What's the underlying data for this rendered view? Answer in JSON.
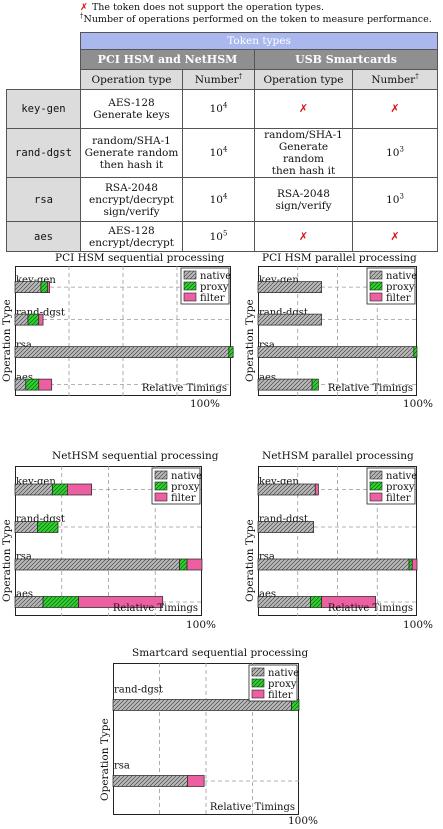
{
  "notes": {
    "cross_symbol": "✗",
    "cross_text": "The token does not support the operation types.",
    "dagger": "†",
    "dagger_text": "Number of operations performed on the token to measure performance."
  },
  "table": {
    "token_types_label": "Token types",
    "groups": [
      "PCI HSM and NetHSM",
      "USB Smartcards"
    ],
    "op_type_label": "Operation type",
    "number_label": "Number",
    "number_sup": "†",
    "rows": [
      {
        "name": "key-gen",
        "pci_op": [
          "AES-128",
          "Generate keys"
        ],
        "pci_num_base": "10",
        "pci_num_exp": "4",
        "usb_op": null,
        "usb_num_base": null,
        "usb_num_exp": null
      },
      {
        "name": "rand-dgst",
        "pci_op": [
          "random/SHA-1",
          "Generate random",
          "then hash it"
        ],
        "pci_num_base": "10",
        "pci_num_exp": "4",
        "usb_op": [
          "random/SHA-1",
          "Generate random",
          "then hash it"
        ],
        "usb_num_base": "10",
        "usb_num_exp": "3"
      },
      {
        "name": "rsa",
        "pci_op": [
          "RSA-2048",
          "encrypt/decrypt",
          "sign/verify"
        ],
        "pci_num_base": "10",
        "pci_num_exp": "4",
        "usb_op": [
          "RSA-2048",
          "sign/verify"
        ],
        "usb_num_base": "10",
        "usb_num_exp": "3"
      },
      {
        "name": "aes",
        "pci_op": [
          "AES-128",
          "encrypt/decrypt"
        ],
        "pci_num_base": "10",
        "pci_num_exp": "5",
        "usb_op": null,
        "usb_num_base": null,
        "usb_num_exp": null
      }
    ],
    "unsupported_symbol": "✗"
  },
  "colors": {
    "native": "#b9b9b9",
    "proxy": "#2fd12f",
    "filter": "#ec5fa0",
    "table_header": "#aab8ee",
    "group_header": "#8f8f8f",
    "sub_header": "#dcdcdc",
    "cross": "#dd1111"
  },
  "chart_labels": {
    "ylabel": "Operation Type",
    "xlabel": "Relative Timings",
    "max_label": "100%",
    "legend": [
      "native",
      "proxy",
      "filter"
    ]
  },
  "chart_data": [
    {
      "type": "bar",
      "title": "PCI HSM sequential processing",
      "orientation": "horizontal-stacked",
      "categories": [
        "key-gen",
        "rand-dgst",
        "rsa",
        "aes"
      ],
      "series": [
        {
          "name": "native",
          "values": [
            12,
            6,
            99,
            5
          ]
        },
        {
          "name": "proxy",
          "values": [
            3,
            5,
            2,
            6
          ]
        },
        {
          "name": "filter",
          "values": [
            1,
            2,
            0,
            6
          ]
        }
      ],
      "xlabel": "Relative Timings",
      "ylabel": "Operation Type",
      "xlim": [
        0,
        100
      ],
      "grid": true
    },
    {
      "type": "bar",
      "title": "PCI HSM parallel processing",
      "orientation": "horizontal-stacked",
      "categories": [
        "key-gen",
        "rand-dgst",
        "rsa",
        "aes"
      ],
      "series": [
        {
          "name": "native",
          "values": [
            40,
            40,
            98,
            34
          ]
        },
        {
          "name": "proxy",
          "values": [
            0,
            0,
            2,
            4
          ]
        },
        {
          "name": "filter",
          "values": [
            0,
            0,
            0,
            0
          ]
        }
      ],
      "xlabel": "Relative Timings",
      "ylabel": "Operation Type",
      "xlim": [
        0,
        100
      ],
      "grid": true
    },
    {
      "type": "bar",
      "title": "NetHSM sequential processing",
      "orientation": "horizontal-stacked",
      "categories": [
        "key-gen",
        "rand-dgst",
        "rsa",
        "aes"
      ],
      "series": [
        {
          "name": "native",
          "values": [
            20,
            12,
            88,
            15
          ]
        },
        {
          "name": "proxy",
          "values": [
            8,
            11,
            4,
            19
          ]
        },
        {
          "name": "filter",
          "values": [
            13,
            0,
            8,
            45
          ]
        }
      ],
      "xlabel": "Relative Timings",
      "ylabel": "Operation Type",
      "xlim": [
        0,
        100
      ],
      "grid": true
    },
    {
      "type": "bar",
      "title": "NetHSM parallel processing",
      "orientation": "horizontal-stacked",
      "categories": [
        "key-gen",
        "rand-dgst",
        "rsa",
        "aes"
      ],
      "series": [
        {
          "name": "native",
          "values": [
            36,
            35,
            95,
            33
          ]
        },
        {
          "name": "proxy",
          "values": [
            0,
            0,
            2,
            7
          ]
        },
        {
          "name": "filter",
          "values": [
            2,
            0,
            3,
            34
          ]
        }
      ],
      "xlabel": "Relative Timings",
      "ylabel": "Operation Type",
      "xlim": [
        0,
        100
      ],
      "grid": true
    },
    {
      "type": "bar",
      "title": "Smartcard sequential processing",
      "orientation": "horizontal-stacked",
      "categories": [
        "rand-dgst",
        "rsa"
      ],
      "series": [
        {
          "name": "native",
          "values": [
            96,
            40
          ]
        },
        {
          "name": "proxy",
          "values": [
            4,
            0
          ]
        },
        {
          "name": "filter",
          "values": [
            0,
            9
          ]
        }
      ],
      "xlabel": "Relative Timings",
      "ylabel": "Operation Type",
      "xlim": [
        0,
        100
      ],
      "grid": true
    }
  ]
}
